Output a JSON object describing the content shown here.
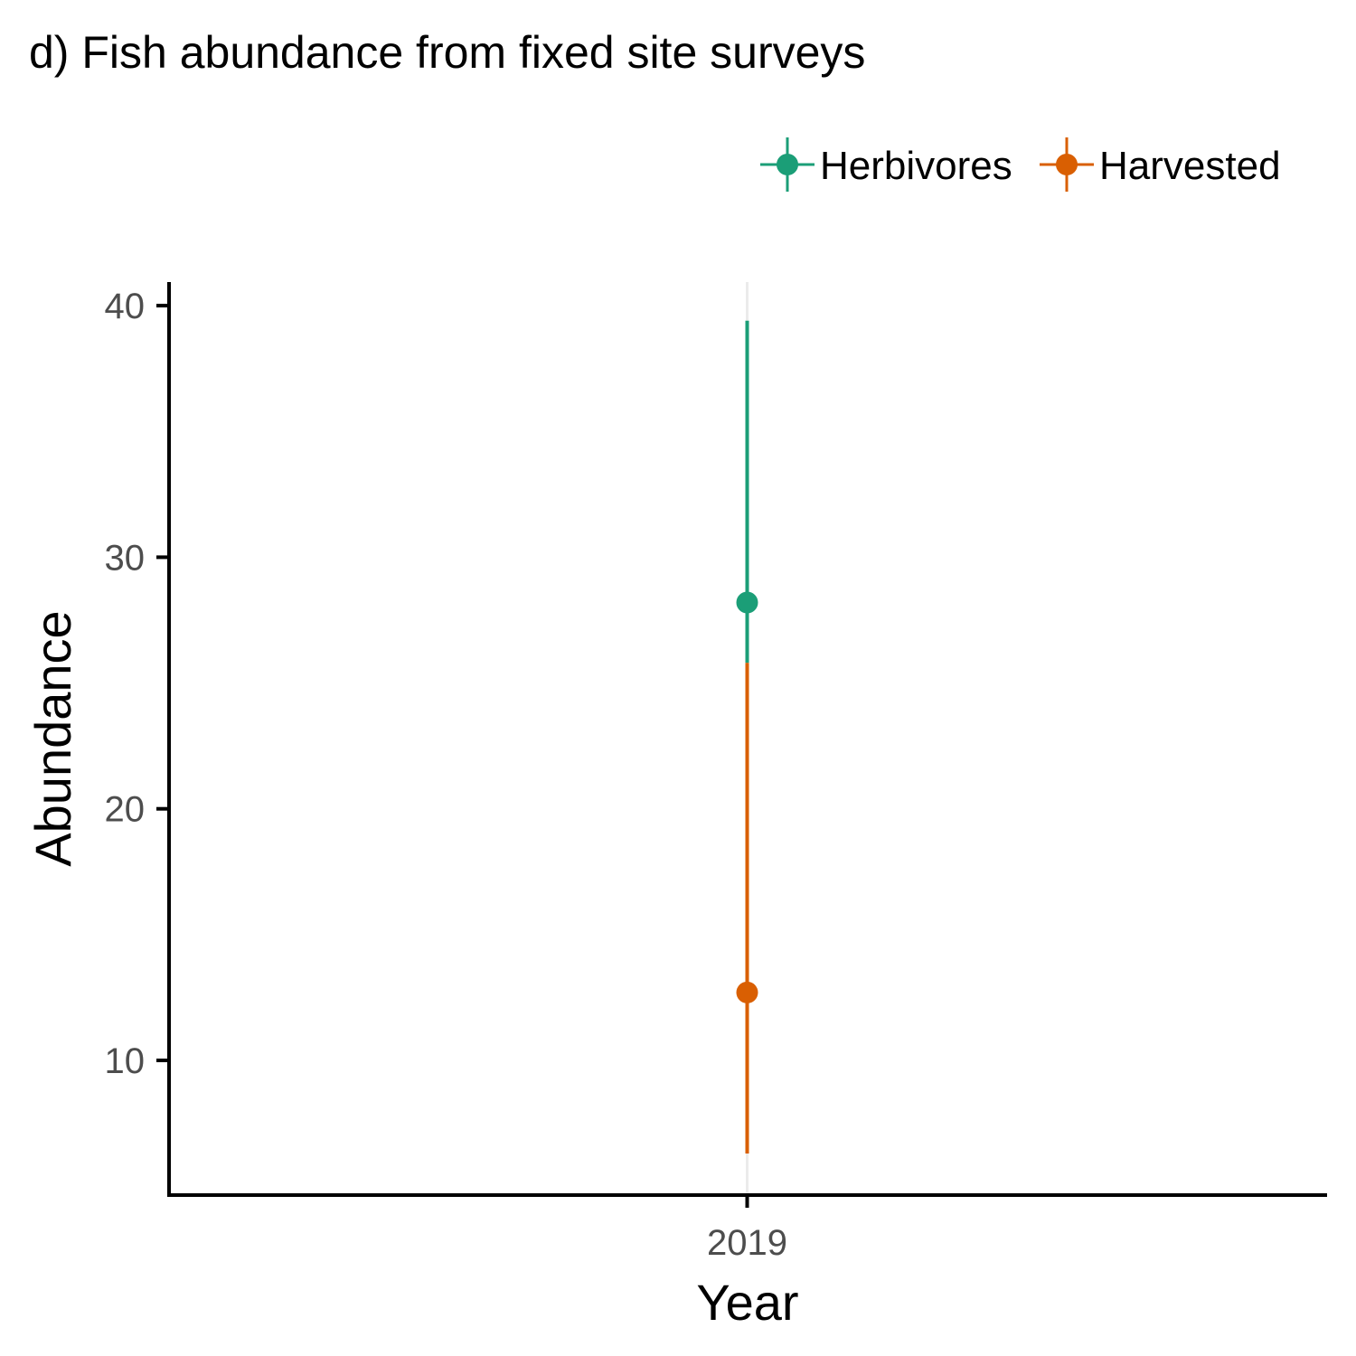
{
  "chart_data": {
    "type": "errorbar",
    "title": "d) Fish abundance from fixed site surveys",
    "xlabel": "Year",
    "ylabel": "Abundance",
    "categories": [
      "2019"
    ],
    "y_ticks": [
      10,
      20,
      30,
      40
    ],
    "ylim": [
      4.5,
      41
    ],
    "grid": "vertical major gridline only",
    "legend_position": "top-right",
    "series": [
      {
        "name": "Herbivores",
        "color": "#1B9E77",
        "points": [
          {
            "x": "2019",
            "y": 28.2,
            "lower": 25.8,
            "upper": 39.4
          }
        ]
      },
      {
        "name": "Harvested",
        "color": "#D95F02",
        "points": [
          {
            "x": "2019",
            "y": 12.7,
            "lower": 6.3,
            "upper": 25.8
          }
        ]
      }
    ]
  }
}
